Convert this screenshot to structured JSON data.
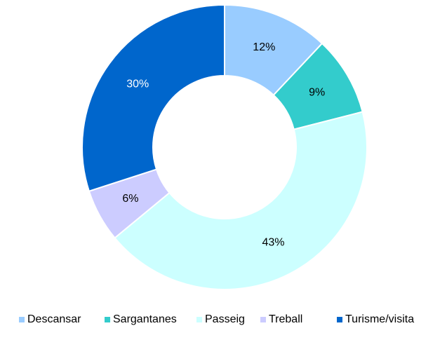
{
  "chart_data": {
    "type": "donut",
    "categories": [
      "Descansar",
      "Sargantanes",
      "Passeig",
      "Treball",
      "Turisme/visita"
    ],
    "values": [
      12,
      9,
      43,
      6,
      30
    ],
    "value_labels": [
      "12%",
      "9%",
      "43%",
      "6%",
      "30%"
    ],
    "colors": [
      "#99ccff",
      "#33cccc",
      "#ccffff",
      "#ccccff",
      "#0066cc"
    ],
    "legend": "bottom"
  }
}
